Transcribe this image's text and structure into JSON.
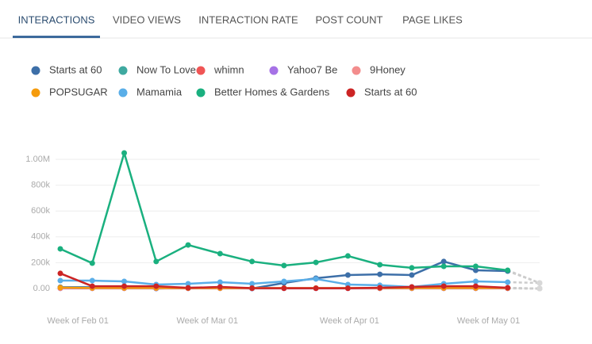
{
  "tabs": [
    "INTERACTIONS",
    "VIDEO VIEWS",
    "INTERACTION RATE",
    "POST COUNT",
    "PAGE LIKES"
  ],
  "chart_data": {
    "type": "line",
    "x": [
      0,
      1,
      2,
      3,
      4,
      5,
      6,
      7,
      8,
      9,
      10,
      11,
      12,
      13,
      14,
      15
    ],
    "xlim": [
      0,
      15
    ],
    "xticks": [
      {
        "value": 0.55,
        "label": "Week of Feb 01"
      },
      {
        "value": 4.6,
        "label": "Week of Mar 01"
      },
      {
        "value": 9.05,
        "label": "Week of Apr 01"
      },
      {
        "value": 13.4,
        "label": "Week of May 01"
      }
    ],
    "ylim": [
      0,
      1000000
    ],
    "yticks": [
      {
        "value": 0,
        "label": "0.00"
      },
      {
        "value": 200000,
        "label": "200k"
      },
      {
        "value": 400000,
        "label": "400k"
      },
      {
        "value": 600000,
        "label": "600k"
      },
      {
        "value": 800000,
        "label": "800k"
      },
      {
        "value": 1000000,
        "label": "1.00M"
      }
    ],
    "grid": true,
    "series": [
      {
        "name": "Starts at 60",
        "color": "#3d6fa8",
        "values": [
          10000,
          10000,
          10000,
          0,
          5000,
          10000,
          0,
          43000,
          80000,
          104000,
          110000,
          104000,
          209000,
          141000,
          135000,
          43000
        ]
      },
      {
        "name": "Now To Love",
        "color": "#3fa9a0",
        "values": [
          4000,
          3000,
          3000,
          3000,
          2000,
          3000,
          2000,
          2000,
          2000,
          2000,
          2000,
          2000,
          2000,
          2000,
          2000,
          0
        ]
      },
      {
        "name": "whimn",
        "color": "#f05555",
        "values": [
          2000,
          2000,
          2000,
          2000,
          2000,
          2000,
          2000,
          2000,
          2000,
          2000,
          2000,
          2000,
          2000,
          2000,
          2000,
          0
        ]
      },
      {
        "name": "Yahoo7 Be",
        "color": "#a672e6",
        "values": [
          1000,
          1000,
          1000,
          1000,
          1000,
          1000,
          1000,
          1000,
          1000,
          1000,
          1000,
          1000,
          1000,
          1000,
          1000,
          0
        ]
      },
      {
        "name": "9Honey",
        "color": "#f38d8d",
        "values": [
          3000,
          3000,
          3000,
          3000,
          3000,
          3000,
          3000,
          3000,
          3000,
          3000,
          3000,
          3000,
          3000,
          3000,
          3000,
          0
        ]
      },
      {
        "name": "POPSUGAR",
        "color": "#f59b0c",
        "values": [
          7000,
          4000,
          4000,
          4000,
          3000,
          3000,
          3000,
          3000,
          3000,
          3000,
          4000,
          4000,
          4000,
          4000,
          4000,
          0
        ]
      },
      {
        "name": "Mamamia",
        "color": "#5aaee8",
        "values": [
          61000,
          61000,
          55000,
          31000,
          37000,
          49000,
          37000,
          55000,
          74000,
          31000,
          25000,
          12000,
          37000,
          55000,
          49000,
          43000
        ]
      },
      {
        "name": "Better Homes & Gardens",
        "color": "#1ab07f",
        "values": [
          307000,
          196000,
          1049000,
          209000,
          337000,
          270000,
          209000,
          178000,
          202000,
          252000,
          184000,
          160000,
          172000,
          172000,
          141000,
          43000
        ]
      },
      {
        "name": "Starts at 60",
        "color": "#cc2424",
        "values": [
          117000,
          18000,
          18000,
          18000,
          5000,
          12000,
          3000,
          2000,
          2000,
          2000,
          6000,
          12000,
          18000,
          18000,
          6000,
          0
        ]
      }
    ]
  }
}
